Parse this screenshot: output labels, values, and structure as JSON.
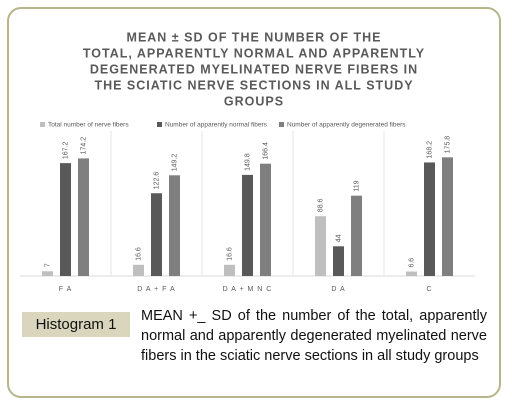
{
  "chart_data": {
    "type": "bar",
    "title": [
      "MEAN ± SD OF THE NUMBER OF THE",
      "TOTAL, APPARENTLY NORMAL AND APPARENTLY",
      "DEGENERATED MYELINATED NERVE FIBERS  IN",
      "THE SCIATIC NERVE SECTIONS IN ALL STUDY",
      "GROUPS"
    ],
    "categories": [
      "F A",
      "D A + F A",
      "D A + M N C",
      "D A",
      "C"
    ],
    "series": [
      {
        "name": "Total number of nerve fibers",
        "color": "#bfbfbf",
        "values": [
          7,
          16.6,
          16.6,
          88.6,
          6.6
        ]
      },
      {
        "name": "Number of apparently normal fibers",
        "color": "#595959",
        "values": [
          167.2,
          122.6,
          149.8,
          44,
          168.2
        ]
      },
      {
        "name": "Number of apparently degenerated fibers",
        "color": "#7f7f7f",
        "values": [
          174.2,
          149.2,
          166.4,
          119,
          175.8
        ]
      }
    ],
    "ylim": [
      0,
      200
    ],
    "legend": "top"
  },
  "caption": {
    "label": "Histogram 1",
    "text": "MEAN +_ SD of the number of the total, apparently normal and apparently degenerated myelinated nerve fibers in the sciatic nerve sections in all study groups"
  }
}
